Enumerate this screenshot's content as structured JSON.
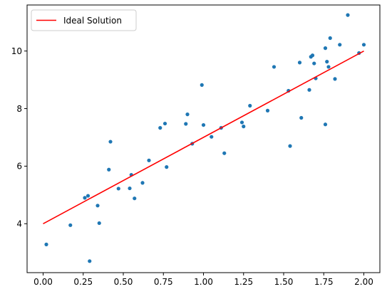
{
  "chart_data": {
    "type": "scatter",
    "xlim": [
      -0.1,
      2.1
    ],
    "ylim": [
      2.3,
      11.6
    ],
    "xticks": [
      "0.00",
      "0.25",
      "0.50",
      "0.75",
      "1.00",
      "1.25",
      "1.50",
      "1.75",
      "2.00"
    ],
    "yticks": [
      "4",
      "6",
      "8",
      "10"
    ],
    "grid": false,
    "legend": {
      "position": "top-left",
      "entries": [
        "Ideal Solution"
      ]
    },
    "colors": {
      "points": "#1f77b4",
      "line": "#ff0000",
      "axes": "#000000",
      "legend_border": "#cccccc"
    },
    "series": [
      {
        "kind": "points",
        "x": [
          0.02,
          0.17,
          0.26,
          0.28,
          0.29,
          0.34,
          0.35,
          0.41,
          0.42,
          0.47,
          0.54,
          0.55,
          0.57,
          0.62,
          0.66,
          0.73,
          0.76,
          0.77,
          0.89,
          0.9,
          0.93,
          0.99,
          1.0,
          1.05,
          1.11,
          1.13,
          1.24,
          1.25,
          1.29,
          1.4,
          1.44,
          1.53,
          1.54,
          1.6,
          1.61,
          1.66,
          1.67,
          1.68,
          1.69,
          1.7,
          1.76,
          1.76,
          1.77,
          1.78,
          1.79,
          1.82,
          1.85,
          1.9,
          1.97,
          2.0
        ],
        "y": [
          3.28,
          3.95,
          4.9,
          4.97,
          2.7,
          4.63,
          4.02,
          5.88,
          6.85,
          5.22,
          5.23,
          5.7,
          4.88,
          5.42,
          6.2,
          7.33,
          7.48,
          5.97,
          7.47,
          7.8,
          6.78,
          8.82,
          7.43,
          7.02,
          7.33,
          6.45,
          7.52,
          7.38,
          8.1,
          7.93,
          9.45,
          8.62,
          6.7,
          9.6,
          7.68,
          8.65,
          9.8,
          9.85,
          9.57,
          9.05,
          10.1,
          7.45,
          9.63,
          9.45,
          10.45,
          9.03,
          10.22,
          11.25,
          9.93,
          10.22
        ]
      },
      {
        "kind": "line",
        "name": "Ideal Solution",
        "x": [
          0.0,
          2.0
        ],
        "y": [
          4.0,
          10.0
        ]
      }
    ]
  }
}
